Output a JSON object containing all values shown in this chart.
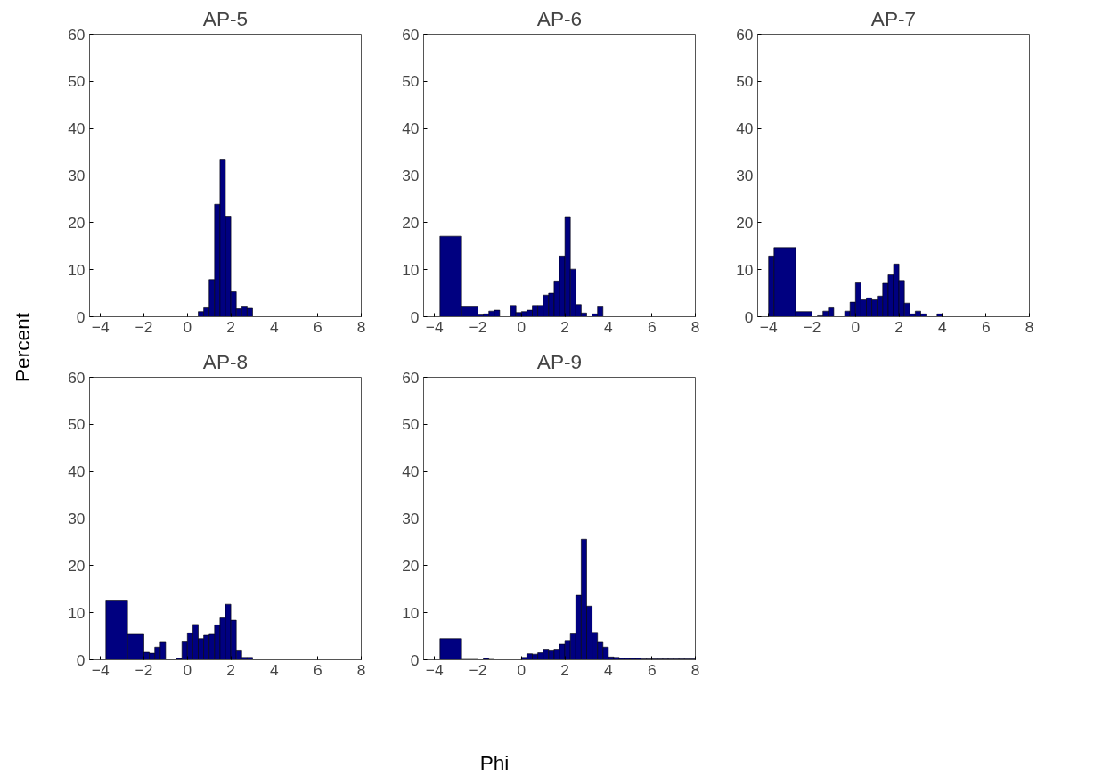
{
  "chart_data": [
    {
      "type": "histogram",
      "title": "AP-5",
      "ylabel": "Percent",
      "color": "#000080",
      "xlim": [
        -4.5,
        8
      ],
      "ylim": [
        0,
        60
      ],
      "xticks": [
        -4,
        -2,
        0,
        2,
        4,
        6,
        8
      ],
      "yticks": [
        0,
        10,
        20,
        30,
        40,
        50,
        60
      ],
      "grid": false,
      "bins": [
        0.5,
        0.75,
        1,
        1.25,
        1.5,
        1.75,
        2,
        2.25,
        2.5,
        2.75,
        3
      ],
      "values": [
        1.1,
        1.9,
        7.9,
        23.9,
        33.3,
        21.2,
        5.3,
        1.7,
        2.1,
        1.8
      ]
    },
    {
      "type": "histogram",
      "title": "AP-6",
      "color": "#000080",
      "xlim": [
        -4.5,
        8
      ],
      "ylim": [
        0,
        60
      ],
      "xticks": [
        -4,
        -2,
        0,
        2,
        4,
        6,
        8
      ],
      "yticks": [
        0,
        10,
        20,
        30,
        40,
        50,
        60
      ],
      "grid": false,
      "bins": [
        -3.75,
        -2.75,
        -2,
        -1.75,
        -1.5,
        -1.25,
        -1,
        -0.5,
        -0.25,
        0,
        0.25,
        0.5,
        0.75,
        1,
        1.25,
        1.5,
        1.75,
        2,
        2.25,
        2.5,
        2.75,
        3,
        3.25,
        3.5,
        3.75
      ],
      "values": [
        17.1,
        2.1,
        0.4,
        0.6,
        1.2,
        1.4,
        null,
        2.4,
        0.9,
        1.1,
        1.4,
        2.4,
        2.4,
        4.6,
        5.0,
        7.6,
        12.9,
        21.1,
        10.1,
        2.6,
        0.8,
        null,
        0.6,
        2.1
      ]
    },
    {
      "type": "histogram",
      "title": "AP-7",
      "color": "#000080",
      "xlim": [
        -4.5,
        8
      ],
      "ylim": [
        0,
        60
      ],
      "xticks": [
        -4,
        -2,
        0,
        2,
        4,
        6,
        8
      ],
      "yticks": [
        0,
        10,
        20,
        30,
        40,
        50,
        60
      ],
      "grid": false,
      "bins": [
        -4,
        -3.75,
        -2.75,
        -2,
        -1.75,
        -1.5,
        -1.25,
        -1,
        -0.5,
        -0.25,
        0,
        0.25,
        0.5,
        0.75,
        1,
        1.25,
        1.5,
        1.75,
        2,
        2.25,
        2.5,
        2.75,
        3,
        3.25,
        3.75,
        4
      ],
      "values": [
        12.9,
        14.7,
        1.1,
        null,
        0.2,
        1.2,
        1.9,
        null,
        1.2,
        3.1,
        7.2,
        3.6,
        4.0,
        3.6,
        4.4,
        7.1,
        8.9,
        11.2,
        7.7,
        2.9,
        0.6,
        1.2,
        0.6,
        null,
        0.6
      ]
    },
    {
      "type": "histogram",
      "title": "AP-8",
      "color": "#000080",
      "xlim": [
        -4.5,
        8
      ],
      "ylim": [
        0,
        60
      ],
      "xticks": [
        -4,
        -2,
        0,
        2,
        4,
        6,
        8
      ],
      "yticks": [
        0,
        10,
        20,
        30,
        40,
        50,
        60
      ],
      "grid": false,
      "bins": [
        -3.75,
        -2.75,
        -2,
        -1.75,
        -1.5,
        -1.25,
        -1,
        -0.5,
        -0.25,
        0,
        0.25,
        0.5,
        0.75,
        1,
        1.25,
        1.5,
        1.75,
        2,
        2.25,
        2.5,
        2.75,
        3
      ],
      "values": [
        12.5,
        5.4,
        1.6,
        1.4,
        2.7,
        3.7,
        null,
        0.3,
        3.8,
        5.7,
        7.5,
        4.5,
        5.2,
        5.4,
        7.4,
        8.9,
        11.8,
        8.4,
        1.9,
        0.5,
        0.5
      ]
    },
    {
      "type": "histogram",
      "title": "AP-9",
      "xlabel": "Phi",
      "color": "#000080",
      "xlim": [
        -4.5,
        8
      ],
      "ylim": [
        0,
        60
      ],
      "xticks": [
        -4,
        -2,
        0,
        2,
        4,
        6,
        8
      ],
      "yticks": [
        0,
        10,
        20,
        30,
        40,
        50,
        60
      ],
      "grid": false,
      "bins": [
        -3.75,
        -2.75,
        -2,
        -1.75,
        -1.5,
        -1.25,
        0,
        0.25,
        0.5,
        0.75,
        1,
        1.25,
        1.5,
        1.75,
        2,
        2.25,
        2.5,
        2.75,
        3,
        3.25,
        3.5,
        3.75,
        4,
        4.25,
        4.5,
        4.75,
        5,
        5.25,
        5.5,
        5.75,
        6,
        6.25,
        6.5,
        6.75,
        7,
        7.25,
        7.5,
        7.75,
        8
      ],
      "values": [
        4.5,
        0.1,
        null,
        0.3,
        0.1,
        null,
        0.5,
        1.3,
        1.2,
        1.5,
        2.1,
        1.9,
        2.1,
        3.3,
        4.1,
        5.5,
        13.7,
        25.6,
        11.4,
        5.8,
        3.7,
        2.7,
        0.6,
        0.5,
        0.3,
        0.3,
        0.3,
        0.3,
        0.2,
        0.2,
        0.2,
        0.2,
        0.2,
        0.2,
        0.2,
        0.2,
        0.2,
        0.2
      ]
    }
  ]
}
